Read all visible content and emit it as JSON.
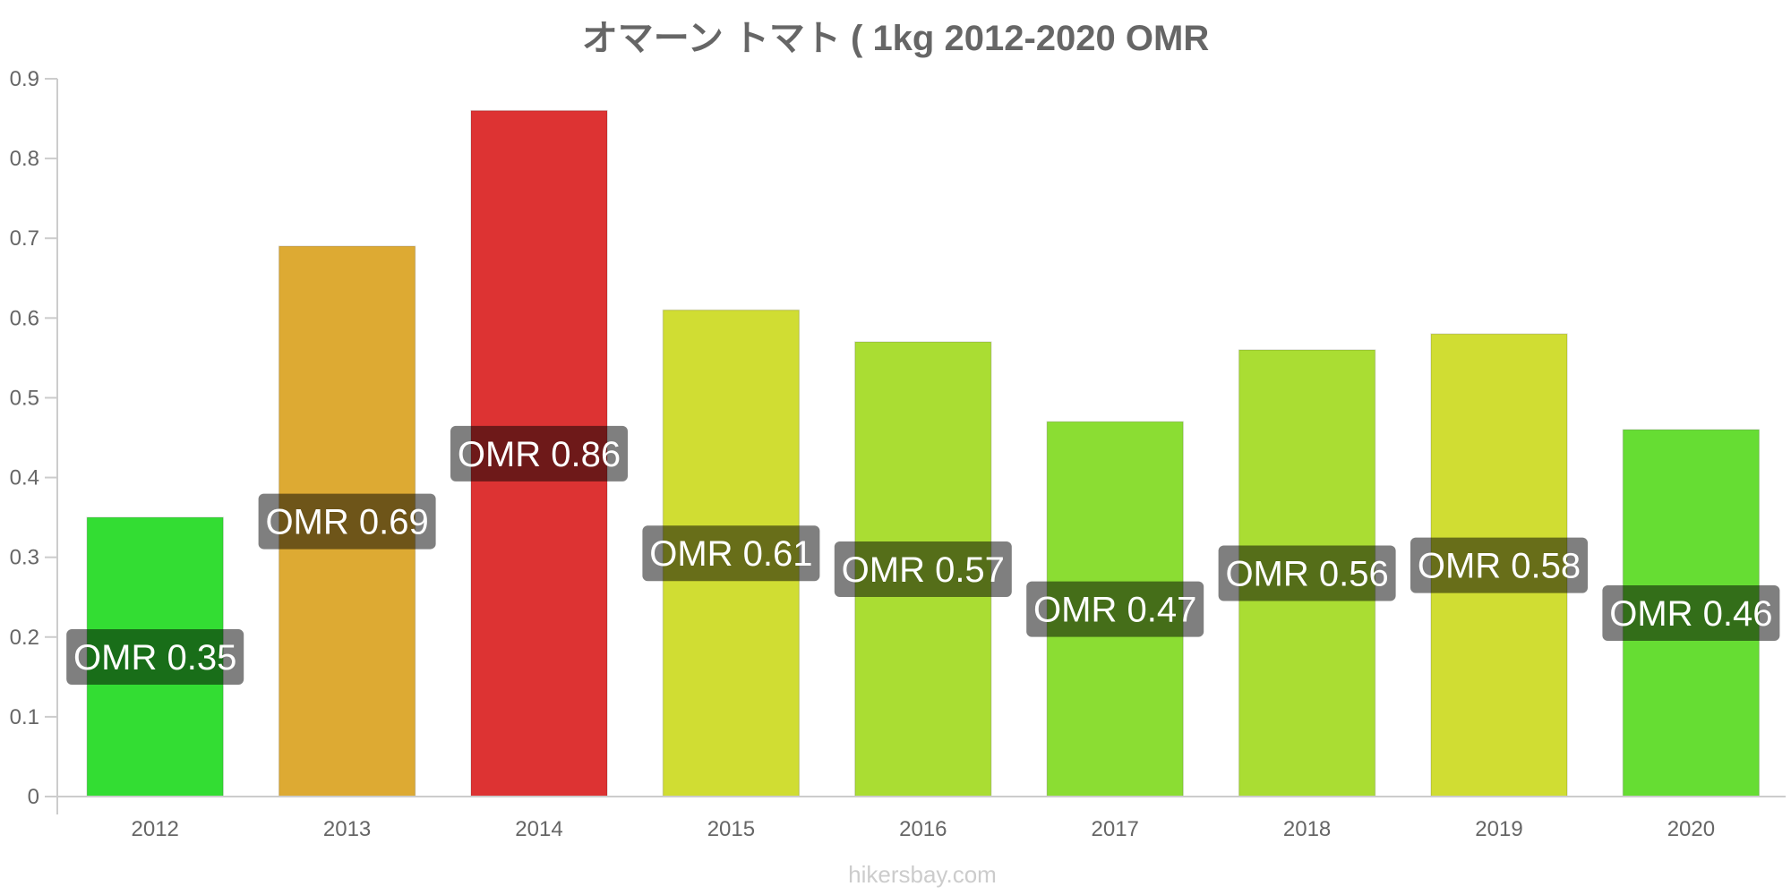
{
  "chart_data": {
    "type": "bar",
    "title": "オマーン トマト ( 1kg 2012-2020 OMR",
    "categories": [
      "2012",
      "2013",
      "2014",
      "2015",
      "2016",
      "2017",
      "2018",
      "2019",
      "2020"
    ],
    "values": [
      0.35,
      0.69,
      0.86,
      0.61,
      0.57,
      0.47,
      0.56,
      0.58,
      0.46
    ],
    "data_labels": [
      "OMR 0.35",
      "OMR 0.69",
      "OMR 0.86",
      "OMR 0.61",
      "OMR 0.57",
      "OMR 0.47",
      "OMR 0.56",
      "OMR 0.58",
      "OMR 0.46"
    ],
    "colors": [
      "#33dd33",
      "#ddaa33",
      "#dd3333",
      "#d0dd33",
      "#aadd33",
      "#8bdd33",
      "#aadd33",
      "#d0dd33",
      "#66dd33"
    ],
    "ylim": [
      0,
      0.9
    ],
    "yticks": [
      "0",
      "0.1",
      "0.2",
      "0.3",
      "0.4",
      "0.5",
      "0.6",
      "0.7",
      "0.8",
      "0.9"
    ],
    "grid": false,
    "legend": "none"
  },
  "watermark": "hikersbay.com"
}
